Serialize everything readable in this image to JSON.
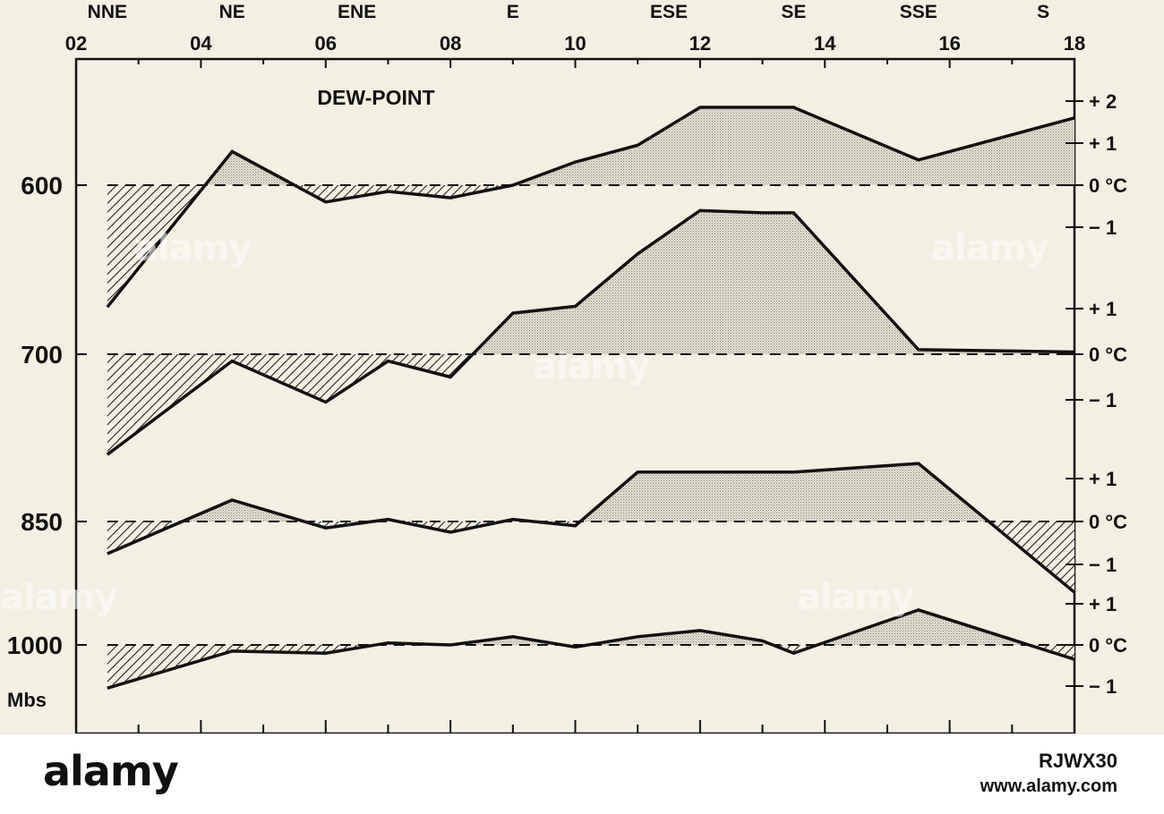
{
  "chart_data": {
    "type": "area",
    "title": "DEW-POINT",
    "x_tick_labels": [
      "02",
      "04",
      "06",
      "08",
      "10",
      "12",
      "14",
      "16",
      "18"
    ],
    "x_ticks": [
      2,
      4,
      6,
      8,
      10,
      12,
      14,
      16,
      18
    ],
    "xlim": [
      2,
      18
    ],
    "wind_directions": [
      {
        "label": "NNE",
        "x": 2.5
      },
      {
        "label": "NE",
        "x": 4.5
      },
      {
        "label": "ENE",
        "x": 6.5
      },
      {
        "label": "E",
        "x": 9.0
      },
      {
        "label": "ESE",
        "x": 11.5
      },
      {
        "label": "SE",
        "x": 13.5
      },
      {
        "label": "SSE",
        "x": 15.5
      },
      {
        "label": "S",
        "x": 17.5
      }
    ],
    "pressure_unit": "Mbs",
    "right_unit": "°C",
    "x": [
      2.5,
      4.5,
      6.0,
      7.0,
      8.0,
      9.0,
      10.0,
      11.0,
      12.0,
      13.0,
      13.5,
      15.5,
      18.0
    ],
    "series": [
      {
        "name": "600",
        "baseline_label": "600",
        "y_tick_labels": [
          "+ 2",
          "+ 1",
          "0 °C",
          "− 1"
        ],
        "y_ticks": [
          2,
          1,
          0,
          -1
        ],
        "values": [
          -2.9,
          0.8,
          -0.4,
          -0.15,
          -0.3,
          0.0,
          0.55,
          0.95,
          1.85,
          1.85,
          1.85,
          0.6,
          1.6
        ]
      },
      {
        "name": "700",
        "baseline_label": "700",
        "y_tick_labels": [
          "+ 1",
          "0 °C",
          "− 1"
        ],
        "y_ticks": [
          1,
          0,
          -1
        ],
        "values": [
          -2.2,
          -0.15,
          -1.05,
          -0.15,
          -0.5,
          0.9,
          1.05,
          2.2,
          3.15,
          3.1,
          3.1,
          0.1,
          0.05
        ]
      },
      {
        "name": "850",
        "baseline_label": "850",
        "y_tick_labels": [
          "+ 1",
          "0 °C",
          "− 1"
        ],
        "y_ticks": [
          1,
          0,
          -1
        ],
        "values": [
          -0.75,
          0.5,
          -0.15,
          0.05,
          -0.25,
          0.05,
          -0.1,
          1.15,
          1.15,
          1.15,
          1.15,
          1.35,
          -1.65
        ]
      },
      {
        "name": "1000",
        "baseline_label": "1000",
        "y_tick_labels": [
          "+ 1",
          "0 °C",
          "− 1"
        ],
        "y_ticks": [
          1,
          0,
          -1
        ],
        "values": [
          -1.05,
          -0.15,
          -0.2,
          0.05,
          0.0,
          0.2,
          -0.05,
          0.2,
          0.35,
          0.1,
          -0.2,
          0.85,
          -0.35
        ]
      }
    ]
  },
  "footer": {
    "brand": "alamy",
    "image_id": "RJWX30",
    "url": "www.alamy.com",
    "watermark": "alamy"
  },
  "colors": {
    "background": "#f3efe2",
    "line": "#111111",
    "positive_fill": "#cfcbbd",
    "negative_hatch": "#222222"
  }
}
